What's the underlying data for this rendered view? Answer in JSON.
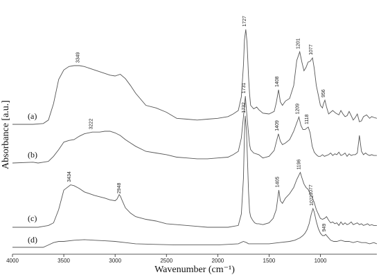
{
  "chart_data": {
    "type": "line",
    "title": "",
    "xlabel": "Wavenumber (cm⁻¹)",
    "ylabel": "Absorbance [a.u.]",
    "xlim": [
      4000,
      450
    ],
    "x_reversed": true,
    "x_ticks": [
      4000,
      3500,
      3000,
      2500,
      2000,
      1500,
      1000
    ],
    "y_ticks_shown": false,
    "grid": false,
    "legend": "none",
    "series": [
      {
        "name": "(a)",
        "x": [
          4000,
          3800,
          3700,
          3650,
          3600,
          3550,
          3500,
          3450,
          3400,
          3349,
          3300,
          3200,
          3100,
          3050,
          3000,
          2950,
          2900,
          2850,
          2800,
          2700,
          2600,
          2500,
          2400,
          2300,
          2200,
          2100,
          2000,
          1900,
          1850,
          1800,
          1770,
          1750,
          1740,
          1727,
          1715,
          1700,
          1690,
          1680,
          1650,
          1620,
          1600,
          1560,
          1500,
          1450,
          1430,
          1408,
          1390,
          1370,
          1340,
          1300,
          1260,
          1230,
          1201,
          1180,
          1160,
          1140,
          1120,
          1100,
          1077,
          1060,
          1040,
          1020,
          1000,
          980,
          970,
          956,
          940,
          920,
          900,
          880,
          850,
          820,
          800,
          780,
          760,
          740,
          720,
          700,
          680,
          660,
          640,
          620,
          600,
          580,
          550,
          520,
          500,
          480,
          450
        ],
        "values": [
          0.0,
          0.0,
          0.01,
          0.05,
          0.24,
          0.52,
          0.63,
          0.67,
          0.68,
          0.68,
          0.67,
          0.63,
          0.59,
          0.57,
          0.56,
          0.58,
          0.53,
          0.45,
          0.36,
          0.22,
          0.19,
          0.14,
          0.07,
          0.06,
          0.05,
          0.06,
          0.07,
          0.09,
          0.12,
          0.16,
          0.32,
          0.68,
          0.98,
          1.1,
          0.95,
          0.55,
          0.35,
          0.22,
          0.18,
          0.2,
          0.17,
          0.13,
          0.12,
          0.15,
          0.25,
          0.4,
          0.26,
          0.22,
          0.27,
          0.3,
          0.45,
          0.74,
          0.84,
          0.72,
          0.62,
          0.66,
          0.72,
          0.73,
          0.77,
          0.65,
          0.45,
          0.34,
          0.22,
          0.19,
          0.24,
          0.28,
          0.2,
          0.12,
          0.14,
          0.16,
          0.13,
          0.11,
          0.16,
          0.12,
          0.09,
          0.1,
          0.15,
          0.1,
          0.05,
          0.08,
          0.12,
          0.03,
          0.04,
          0.09,
          0.11,
          0.07,
          0.09,
          0.08,
          0.07
        ]
      },
      {
        "name": "(b)",
        "x": [
          4000,
          3800,
          3750,
          3700,
          3650,
          3600,
          3550,
          3500,
          3450,
          3400,
          3350,
          3300,
          3222,
          3150,
          3100,
          3050,
          3000,
          2950,
          2900,
          2850,
          2800,
          2700,
          2600,
          2500,
          2400,
          2300,
          2200,
          2100,
          2000,
          1900,
          1850,
          1800,
          1770,
          1750,
          1731,
          1715,
          1700,
          1690,
          1680,
          1650,
          1600,
          1560,
          1500,
          1450,
          1430,
          1409,
          1390,
          1370,
          1340,
          1300,
          1260,
          1230,
          1209,
          1190,
          1170,
          1150,
          1130,
          1118,
          1100,
          1080,
          1060,
          1040,
          1020,
          1000,
          980,
          960,
          940,
          920,
          900,
          880,
          860,
          840,
          820,
          800,
          780,
          760,
          740,
          720,
          700,
          680,
          660,
          640,
          620,
          600,
          580,
          560,
          540,
          520,
          500,
          480,
          450
        ],
        "values": [
          0.0,
          0.01,
          0.0,
          0.01,
          0.02,
          0.08,
          0.16,
          0.25,
          0.27,
          0.28,
          0.32,
          0.35,
          0.37,
          0.37,
          0.38,
          0.38,
          0.36,
          0.33,
          0.28,
          0.24,
          0.2,
          0.14,
          0.12,
          0.1,
          0.07,
          0.06,
          0.05,
          0.05,
          0.06,
          0.07,
          0.1,
          0.14,
          0.3,
          0.55,
          0.8,
          0.55,
          0.35,
          0.22,
          0.16,
          0.12,
          0.1,
          0.06,
          0.08,
          0.15,
          0.25,
          0.35,
          0.26,
          0.22,
          0.24,
          0.28,
          0.38,
          0.48,
          0.55,
          0.45,
          0.4,
          0.4,
          0.42,
          0.43,
          0.36,
          0.2,
          0.13,
          0.1,
          0.08,
          0.08,
          0.1,
          0.08,
          0.09,
          0.1,
          0.12,
          0.09,
          0.11,
          0.1,
          0.13,
          0.09,
          0.1,
          0.12,
          0.08,
          0.11,
          0.09,
          0.1,
          0.1,
          0.12,
          0.33,
          0.14,
          0.1,
          0.12,
          0.1,
          0.09,
          0.1,
          0.09,
          0.09
        ]
      },
      {
        "name": "(c)",
        "x": [
          4000,
          3800,
          3750,
          3700,
          3650,
          3600,
          3550,
          3500,
          3434,
          3400,
          3350,
          3300,
          3200,
          3100,
          3050,
          3000,
          2980,
          2960,
          2948,
          2930,
          2900,
          2850,
          2800,
          2700,
          2600,
          2500,
          2400,
          2300,
          2200,
          2100,
          2000,
          1900,
          1850,
          1800,
          1770,
          1750,
          1740,
          1732,
          1720,
          1710,
          1700,
          1690,
          1680,
          1660,
          1640,
          1620,
          1600,
          1560,
          1500,
          1460,
          1430,
          1405,
          1390,
          1370,
          1340,
          1300,
          1260,
          1230,
          1196,
          1180,
          1160,
          1140,
          1120,
          1100,
          1077,
          1060,
          1040,
          1020,
          1000,
          980,
          960,
          940,
          920,
          900,
          880,
          860,
          840,
          820,
          800,
          780,
          760,
          740,
          720,
          700,
          680,
          660,
          640,
          620,
          600,
          580,
          560,
          540,
          520,
          500,
          480,
          450
        ],
        "values": [
          0.0,
          0.0,
          0.0,
          0.01,
          0.02,
          0.05,
          0.2,
          0.42,
          0.48,
          0.47,
          0.44,
          0.4,
          0.36,
          0.33,
          0.31,
          0.3,
          0.32,
          0.37,
          0.35,
          0.3,
          0.22,
          0.16,
          0.12,
          0.09,
          0.07,
          0.04,
          0.03,
          0.02,
          0.01,
          0.0,
          0.0,
          0.0,
          0.01,
          0.02,
          0.15,
          0.55,
          1.05,
          1.26,
          1.1,
          0.75,
          0.4,
          0.18,
          0.12,
          0.08,
          0.05,
          0.04,
          0.04,
          0.03,
          0.05,
          0.1,
          0.2,
          0.42,
          0.3,
          0.27,
          0.33,
          0.38,
          0.45,
          0.54,
          0.62,
          0.56,
          0.49,
          0.45,
          0.43,
          0.38,
          0.33,
          0.28,
          0.2,
          0.15,
          0.1,
          0.09,
          0.1,
          0.12,
          0.08,
          0.05,
          0.06,
          0.04,
          0.05,
          0.02,
          0.06,
          0.03,
          0.05,
          0.03,
          0.04,
          0.06,
          0.03,
          0.04,
          0.05,
          0.03,
          0.04,
          0.02,
          0.03,
          0.04,
          0.02,
          0.03,
          0.02,
          0.02
        ]
      },
      {
        "name": "(d)",
        "x": [
          4000,
          3800,
          3700,
          3650,
          3600,
          3550,
          3500,
          3400,
          3300,
          3200,
          3100,
          3000,
          2900,
          2800,
          2600,
          2400,
          2200,
          2000,
          1800,
          1750,
          1720,
          1700,
          1650,
          1500,
          1400,
          1300,
          1250,
          1200,
          1170,
          1150,
          1130,
          1110,
          1090,
          1072,
          1060,
          1040,
          1020,
          1000,
          980,
          960,
          949,
          930,
          900,
          870,
          840,
          800,
          760,
          720,
          680,
          640,
          600,
          560,
          520,
          480,
          450
        ],
        "values": [
          0.0,
          0.0,
          0.0,
          0.02,
          0.04,
          0.05,
          0.05,
          0.06,
          0.065,
          0.06,
          0.055,
          0.05,
          0.04,
          0.03,
          0.025,
          0.02,
          0.02,
          0.02,
          0.03,
          0.05,
          0.04,
          0.03,
          0.03,
          0.03,
          0.04,
          0.05,
          0.06,
          0.08,
          0.1,
          0.12,
          0.15,
          0.2,
          0.28,
          0.33,
          0.3,
          0.22,
          0.16,
          0.12,
          0.1,
          0.1,
          0.11,
          0.09,
          0.06,
          0.05,
          0.05,
          0.06,
          0.05,
          0.05,
          0.04,
          0.05,
          0.04,
          0.04,
          0.03,
          0.04,
          0.03
        ]
      }
    ],
    "peak_labels": [
      {
        "series": "(a)",
        "x": 3349,
        "text": "3349"
      },
      {
        "series": "(a)",
        "x": 1727,
        "text": "1727"
      },
      {
        "series": "(a)",
        "x": 1408,
        "text": "1408"
      },
      {
        "series": "(a)",
        "x": 1201,
        "text": "1201"
      },
      {
        "series": "(a)",
        "x": 1077,
        "text": "1077"
      },
      {
        "series": "(a)",
        "x": 956,
        "text": "956"
      },
      {
        "series": "(b)",
        "x": 3222,
        "text": "3222"
      },
      {
        "series": "(b)",
        "x": 1731,
        "text": "1731"
      },
      {
        "series": "(b)",
        "x": 1409,
        "text": "1409"
      },
      {
        "series": "(b)",
        "x": 1209,
        "text": "1209"
      },
      {
        "series": "(b)",
        "x": 1118,
        "text": "1118"
      },
      {
        "series": "(c)",
        "x": 3434,
        "text": "3434"
      },
      {
        "series": "(c)",
        "x": 2948,
        "text": "2948"
      },
      {
        "series": "(c)",
        "x": 1732,
        "text": "1732"
      },
      {
        "series": "(c)",
        "x": 1405,
        "text": "1405"
      },
      {
        "series": "(c)",
        "x": 1196,
        "text": "1196"
      },
      {
        "series": "(c)",
        "x": 1077,
        "text": "1077"
      },
      {
        "series": "(d)",
        "x": 1072,
        "text": "1072"
      },
      {
        "series": "(d)",
        "x": 949,
        "text": "949"
      }
    ]
  }
}
